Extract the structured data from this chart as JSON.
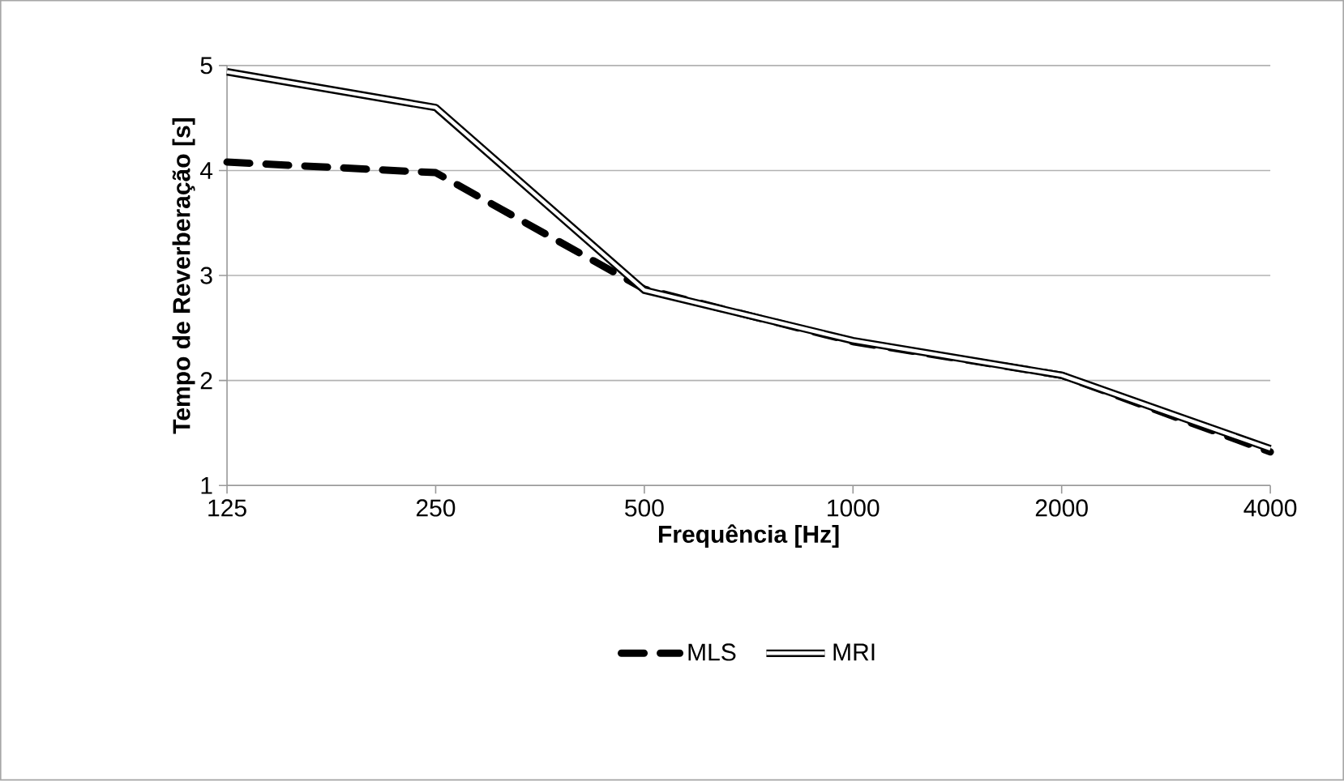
{
  "chart_data": {
    "type": "line",
    "xlabel": "Frequência [Hz]",
    "ylabel": "Tempo de Reverberação [s]",
    "categories": [
      "125",
      "250",
      "500",
      "1000",
      "2000",
      "4000"
    ],
    "series": [
      {
        "name": "MLS",
        "color": "#000000",
        "line_style": "dashed",
        "values": [
          4.08,
          3.98,
          2.87,
          2.37,
          2.05,
          1.32
        ]
      },
      {
        "name": "MRI",
        "color": "#000000",
        "line_style": "solid",
        "values": [
          4.94,
          4.6,
          2.86,
          2.38,
          2.05,
          1.35
        ]
      }
    ],
    "ylim": [
      1,
      5
    ],
    "yticks": [
      1,
      2,
      3,
      4,
      5
    ],
    "grid": "y",
    "legend": "bottom",
    "marker": "none"
  }
}
